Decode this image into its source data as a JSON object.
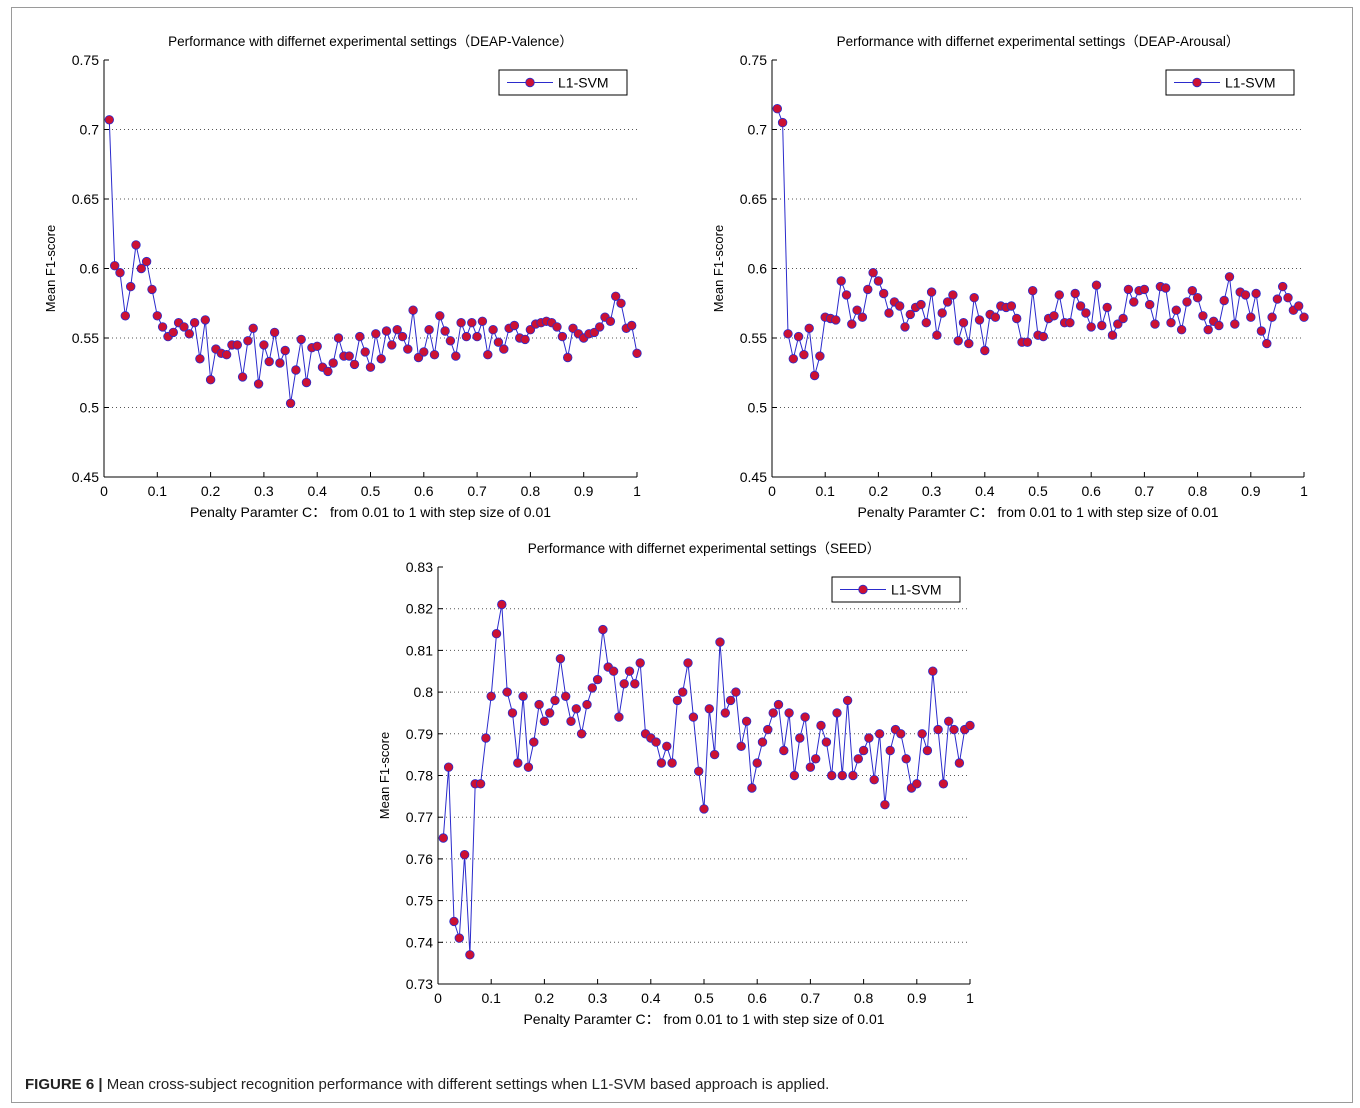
{
  "caption": {
    "label": "FIGURE 6 |",
    "text": "Mean cross-subject recognition performance with different settings when L1-SVM based approach is applied."
  },
  "colors": {
    "line": "#2b2bcc",
    "marker": "#cc1133",
    "grid": "#555555",
    "axis": "#000000"
  },
  "chart_data": [
    {
      "type": "line",
      "title": "Performance with differnet experimental settings（DEAP-Valence）",
      "xlabel": "Penalty Paramter C： from 0.01 to 1 with step size of 0.01",
      "ylabel": "Mean F1-score",
      "xlim": [
        0,
        1
      ],
      "ylim": [
        0.45,
        0.75
      ],
      "xticks": [
        "0",
        "0.1",
        "0.2",
        "0.3",
        "0.4",
        "0.5",
        "0.6",
        "0.7",
        "0.8",
        "0.9",
        "1"
      ],
      "yticks": [
        "0.45",
        "0.5",
        "0.55",
        "0.6",
        "0.65",
        "0.7",
        "0.75"
      ],
      "grid": "horizontal dotted",
      "legend": "top-right",
      "series": [
        {
          "name": "L1-SVM",
          "x_start": 0.01,
          "x_step": 0.01,
          "values": [
            0.707,
            0.602,
            0.597,
            0.566,
            0.587,
            0.617,
            0.6,
            0.605,
            0.585,
            0.566,
            0.558,
            0.551,
            0.554,
            0.561,
            0.558,
            0.553,
            0.561,
            0.535,
            0.563,
            0.52,
            0.542,
            0.539,
            0.538,
            0.545,
            0.545,
            0.522,
            0.548,
            0.557,
            0.517,
            0.545,
            0.533,
            0.554,
            0.532,
            0.541,
            0.503,
            0.527,
            0.549,
            0.518,
            0.543,
            0.544,
            0.529,
            0.526,
            0.532,
            0.55,
            0.537,
            0.537,
            0.531,
            0.551,
            0.54,
            0.529,
            0.553,
            0.535,
            0.555,
            0.545,
            0.556,
            0.551,
            0.542,
            0.57,
            0.536,
            0.54,
            0.556,
            0.538,
            0.566,
            0.555,
            0.548,
            0.537,
            0.561,
            0.551,
            0.561,
            0.551,
            0.562,
            0.538,
            0.556,
            0.547,
            0.542,
            0.557,
            0.559,
            0.55,
            0.549,
            0.556,
            0.56,
            0.561,
            0.562,
            0.561,
            0.558,
            0.551,
            0.536,
            0.557,
            0.553,
            0.55,
            0.553,
            0.554,
            0.558,
            0.565,
            0.562,
            0.58,
            0.575,
            0.557,
            0.559,
            0.539
          ]
        }
      ]
    },
    {
      "type": "line",
      "title": "Performance with differnet experimental settings（DEAP-Arousal）",
      "xlabel": "Penalty Paramter C： from 0.01 to 1 with step size of 0.01",
      "ylabel": "Mean F1-score",
      "xlim": [
        0,
        1
      ],
      "ylim": [
        0.45,
        0.75
      ],
      "xticks": [
        "0",
        "0.1",
        "0.2",
        "0.3",
        "0.4",
        "0.5",
        "0.6",
        "0.7",
        "0.8",
        "0.9",
        "1"
      ],
      "yticks": [
        "0.45",
        "0.5",
        "0.55",
        "0.6",
        "0.65",
        "0.7",
        "0.75"
      ],
      "grid": "horizontal dotted",
      "legend": "top-right",
      "series": [
        {
          "name": "L1-SVM",
          "x_start": 0.01,
          "x_step": 0.01,
          "values": [
            0.715,
            0.705,
            0.553,
            0.535,
            0.551,
            0.538,
            0.557,
            0.523,
            0.537,
            0.565,
            0.564,
            0.563,
            0.591,
            0.581,
            0.56,
            0.57,
            0.565,
            0.585,
            0.597,
            0.591,
            0.582,
            0.568,
            0.576,
            0.573,
            0.558,
            0.567,
            0.572,
            0.574,
            0.561,
            0.583,
            0.552,
            0.568,
            0.576,
            0.581,
            0.548,
            0.561,
            0.546,
            0.579,
            0.563,
            0.541,
            0.567,
            0.565,
            0.573,
            0.572,
            0.573,
            0.564,
            0.547,
            0.547,
            0.584,
            0.552,
            0.551,
            0.564,
            0.566,
            0.581,
            0.561,
            0.561,
            0.582,
            0.573,
            0.568,
            0.558,
            0.588,
            0.559,
            0.572,
            0.552,
            0.56,
            0.564,
            0.585,
            0.576,
            0.584,
            0.585,
            0.574,
            0.56,
            0.587,
            0.586,
            0.561,
            0.57,
            0.556,
            0.576,
            0.584,
            0.579,
            0.566,
            0.556,
            0.562,
            0.559,
            0.577,
            0.594,
            0.56,
            0.583,
            0.581,
            0.565,
            0.582,
            0.555,
            0.546,
            0.565,
            0.578,
            0.587,
            0.579,
            0.57,
            0.573,
            0.565
          ]
        }
      ]
    },
    {
      "type": "line",
      "title": "Performance with differnet experimental settings（SEED）",
      "xlabel": "Penalty Paramter C： from 0.01 to 1 with step size of 0.01",
      "ylabel": "Mean F1-score",
      "xlim": [
        0,
        1
      ],
      "ylim": [
        0.73,
        0.83
      ],
      "xticks": [
        "0",
        "0.1",
        "0.2",
        "0.3",
        "0.4",
        "0.5",
        "0.6",
        "0.7",
        "0.8",
        "0.9",
        "1"
      ],
      "yticks": [
        "0.73",
        "0.74",
        "0.75",
        "0.76",
        "0.77",
        "0.78",
        "0.79",
        "0.8",
        "0.81",
        "0.82",
        "0.83"
      ],
      "grid": "horizontal dotted",
      "legend": "top-right",
      "series": [
        {
          "name": "L1-SVM",
          "x_start": 0.01,
          "x_step": 0.01,
          "values": [
            0.765,
            0.782,
            0.745,
            0.741,
            0.761,
            0.737,
            0.778,
            0.778,
            0.789,
            0.799,
            0.814,
            0.821,
            0.8,
            0.795,
            0.783,
            0.799,
            0.782,
            0.788,
            0.797,
            0.793,
            0.795,
            0.798,
            0.808,
            0.799,
            0.793,
            0.796,
            0.79,
            0.797,
            0.801,
            0.803,
            0.815,
            0.806,
            0.805,
            0.794,
            0.802,
            0.805,
            0.802,
            0.807,
            0.79,
            0.789,
            0.788,
            0.783,
            0.787,
            0.783,
            0.798,
            0.8,
            0.807,
            0.794,
            0.781,
            0.772,
            0.796,
            0.785,
            0.812,
            0.795,
            0.798,
            0.8,
            0.787,
            0.793,
            0.777,
            0.783,
            0.788,
            0.791,
            0.795,
            0.797,
            0.786,
            0.795,
            0.78,
            0.789,
            0.794,
            0.782,
            0.784,
            0.792,
            0.788,
            0.78,
            0.795,
            0.78,
            0.798,
            0.78,
            0.784,
            0.786,
            0.789,
            0.779,
            0.79,
            0.773,
            0.786,
            0.791,
            0.79,
            0.784,
            0.777,
            0.778,
            0.79,
            0.786,
            0.805,
            0.791,
            0.778,
            0.793,
            0.791,
            0.783,
            0.791,
            0.792
          ]
        }
      ]
    }
  ]
}
